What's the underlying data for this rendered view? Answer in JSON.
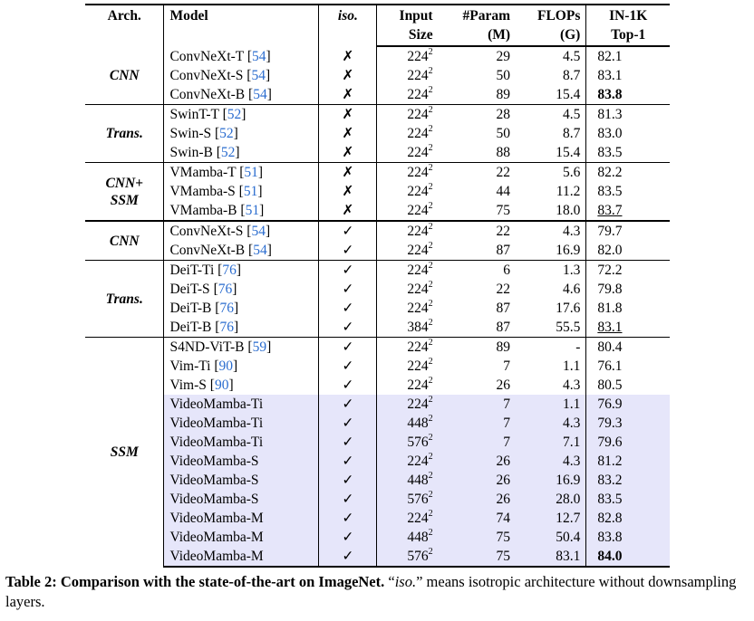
{
  "headers": {
    "arch": "Arch.",
    "model": "Model",
    "iso": "iso.",
    "input_1": "Input",
    "input_2": "Size",
    "param_1": "#Param",
    "param_2": "(M)",
    "flops_1": "FLOPs",
    "flops_2": "(G)",
    "top1_1": "IN-1K",
    "top1_2": "Top-1"
  },
  "marks": {
    "no": "✗",
    "yes": "✓"
  },
  "groups": [
    {
      "arch": "CNN",
      "rows": [
        {
          "model": "ConvNeXt-T",
          "ref": "54",
          "iso": "no",
          "input": "224",
          "param": "29",
          "flops": "4.5",
          "top1": "82.1"
        },
        {
          "model": "ConvNeXt-S",
          "ref": "54",
          "iso": "no",
          "input": "224",
          "param": "50",
          "flops": "8.7",
          "top1": "83.1"
        },
        {
          "model": "ConvNeXt-B",
          "ref": "54",
          "iso": "no",
          "input": "224",
          "param": "89",
          "flops": "15.4",
          "top1": "83.8",
          "top1_style": "bold"
        }
      ]
    },
    {
      "arch": "Trans.",
      "rows": [
        {
          "model": "SwinT-T",
          "ref": "52",
          "iso": "no",
          "input": "224",
          "param": "28",
          "flops": "4.5",
          "top1": "81.3"
        },
        {
          "model": "Swin-S",
          "ref": "52",
          "iso": "no",
          "input": "224",
          "param": "50",
          "flops": "8.7",
          "top1": "83.0"
        },
        {
          "model": "Swin-B",
          "ref": "52",
          "iso": "no",
          "input": "224",
          "param": "88",
          "flops": "15.4",
          "top1": "83.5"
        }
      ]
    },
    {
      "arch": "CNN+ SSM",
      "rows": [
        {
          "model": "VMamba-T",
          "ref": "51",
          "iso": "no",
          "input": "224",
          "param": "22",
          "flops": "5.6",
          "top1": "82.2"
        },
        {
          "model": "VMamba-S",
          "ref": "51",
          "iso": "no",
          "input": "224",
          "param": "44",
          "flops": "11.2",
          "top1": "83.5"
        },
        {
          "model": "VMamba-B",
          "ref": "51",
          "iso": "no",
          "input": "224",
          "param": "75",
          "flops": "18.0",
          "top1": "83.7",
          "top1_style": "underline"
        }
      ]
    },
    {
      "arch": "CNN",
      "thick": true,
      "rows": [
        {
          "model": "ConvNeXt-S",
          "ref": "54",
          "iso": "yes",
          "input": "224",
          "param": "22",
          "flops": "4.3",
          "top1": "79.7"
        },
        {
          "model": "ConvNeXt-B",
          "ref": "54",
          "iso": "yes",
          "input": "224",
          "param": "87",
          "flops": "16.9",
          "top1": "82.0"
        }
      ]
    },
    {
      "arch": "Trans.",
      "rows": [
        {
          "model": "DeiT-Ti",
          "ref": "76",
          "iso": "yes",
          "input": "224",
          "param": "6",
          "flops": "1.3",
          "top1": "72.2"
        },
        {
          "model": "DeiT-S",
          "ref": "76",
          "iso": "yes",
          "input": "224",
          "param": "22",
          "flops": "4.6",
          "top1": "79.8"
        },
        {
          "model": "DeiT-B",
          "ref": "76",
          "iso": "yes",
          "input": "224",
          "param": "87",
          "flops": "17.6",
          "top1": "81.8"
        },
        {
          "model": "DeiT-B",
          "ref": "76",
          "iso": "yes",
          "input": "384",
          "param": "87",
          "flops": "55.5",
          "top1": "83.1",
          "top1_style": "underline"
        }
      ]
    },
    {
      "arch": "SSM",
      "rows": [
        {
          "model": "S4ND-ViT-B",
          "ref": "59",
          "iso": "yes",
          "input": "224",
          "param": "89",
          "flops": "-",
          "top1": "80.4"
        },
        {
          "model": "Vim-Ti",
          "ref": "90",
          "iso": "yes",
          "input": "224",
          "param": "7",
          "flops": "1.1",
          "top1": "76.1"
        },
        {
          "model": "Vim-S",
          "ref": "90",
          "iso": "yes",
          "input": "224",
          "param": "26",
          "flops": "4.3",
          "top1": "80.5"
        },
        {
          "model": "VideoMamba-Ti",
          "iso": "yes",
          "input": "224",
          "param": "7",
          "flops": "1.1",
          "top1": "76.9",
          "highlight": true
        },
        {
          "model": "VideoMamba-Ti",
          "iso": "yes",
          "input": "448",
          "param": "7",
          "flops": "4.3",
          "top1": "79.3",
          "highlight": true
        },
        {
          "model": "VideoMamba-Ti",
          "iso": "yes",
          "input": "576",
          "param": "7",
          "flops": "7.1",
          "top1": "79.6",
          "highlight": true
        },
        {
          "model": "VideoMamba-S",
          "iso": "yes",
          "input": "224",
          "param": "26",
          "flops": "4.3",
          "top1": "81.2",
          "highlight": true
        },
        {
          "model": "VideoMamba-S",
          "iso": "yes",
          "input": "448",
          "param": "26",
          "flops": "16.9",
          "top1": "83.2",
          "highlight": true
        },
        {
          "model": "VideoMamba-S",
          "iso": "yes",
          "input": "576",
          "param": "26",
          "flops": "28.0",
          "top1": "83.5",
          "highlight": true
        },
        {
          "model": "VideoMamba-M",
          "iso": "yes",
          "input": "224",
          "param": "74",
          "flops": "12.7",
          "top1": "82.8",
          "highlight": true
        },
        {
          "model": "VideoMamba-M",
          "iso": "yes",
          "input": "448",
          "param": "75",
          "flops": "50.4",
          "top1": "83.8",
          "highlight": true
        },
        {
          "model": "VideoMamba-M",
          "iso": "yes",
          "input": "576",
          "param": "75",
          "flops": "83.1",
          "top1": "84.0",
          "top1_style": "bold",
          "highlight": true
        }
      ]
    }
  ],
  "caption": {
    "label": "Table 2: Comparison with the state-of-the-art on ImageNet.",
    "open_quote": " “",
    "iso_term": "iso.",
    "rest": "” means isotropic architecture without downsampling layers."
  }
}
